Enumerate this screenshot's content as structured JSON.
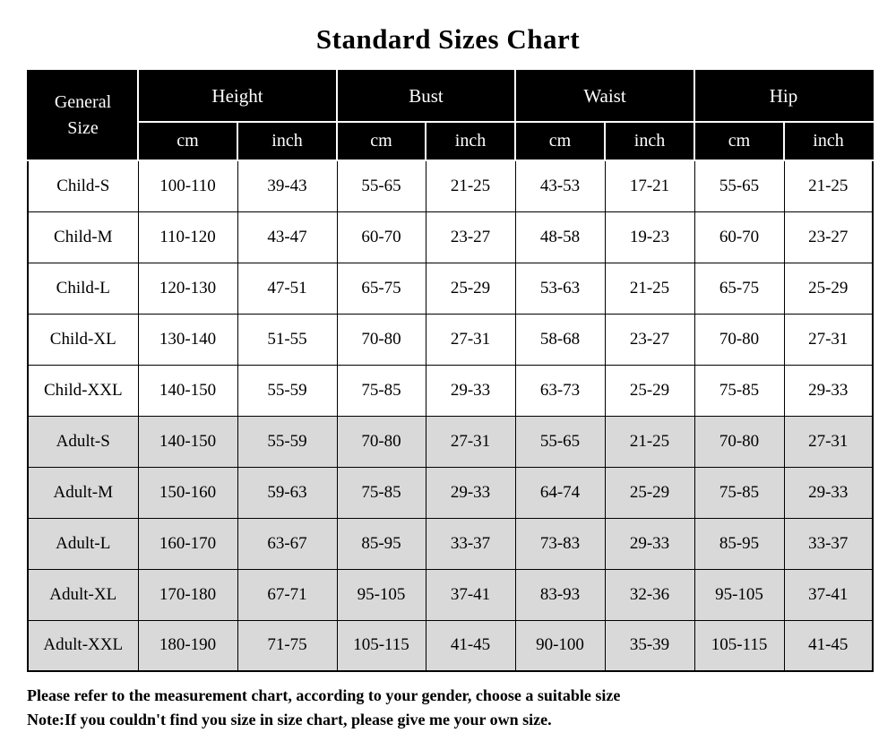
{
  "title": "Standard Sizes Chart",
  "table": {
    "corner_header": "General Size",
    "groups": [
      {
        "label": "Height"
      },
      {
        "label": "Bust"
      },
      {
        "label": "Waist"
      },
      {
        "label": "Hip"
      }
    ],
    "unit_headers": [
      "cm",
      "inch"
    ],
    "rows": [
      {
        "size": "Child-S",
        "section": "child",
        "values": [
          "100-110",
          "39-43",
          "55-65",
          "21-25",
          "43-53",
          "17-21",
          "55-65",
          "21-25"
        ]
      },
      {
        "size": "Child-M",
        "section": "child",
        "values": [
          "110-120",
          "43-47",
          "60-70",
          "23-27",
          "48-58",
          "19-23",
          "60-70",
          "23-27"
        ]
      },
      {
        "size": "Child-L",
        "section": "child",
        "values": [
          "120-130",
          "47-51",
          "65-75",
          "25-29",
          "53-63",
          "21-25",
          "65-75",
          "25-29"
        ]
      },
      {
        "size": "Child-XL",
        "section": "child",
        "values": [
          "130-140",
          "51-55",
          "70-80",
          "27-31",
          "58-68",
          "23-27",
          "70-80",
          "27-31"
        ]
      },
      {
        "size": "Child-XXL",
        "section": "child",
        "values": [
          "140-150",
          "55-59",
          "75-85",
          "29-33",
          "63-73",
          "25-29",
          "75-85",
          "29-33"
        ]
      },
      {
        "size": "Adult-S",
        "section": "adult",
        "values": [
          "140-150",
          "55-59",
          "70-80",
          "27-31",
          "55-65",
          "21-25",
          "70-80",
          "27-31"
        ]
      },
      {
        "size": "Adult-M",
        "section": "adult",
        "values": [
          "150-160",
          "59-63",
          "75-85",
          "29-33",
          "64-74",
          "25-29",
          "75-85",
          "29-33"
        ]
      },
      {
        "size": "Adult-L",
        "section": "adult",
        "values": [
          "160-170",
          "63-67",
          "85-95",
          "33-37",
          "73-83",
          "29-33",
          "85-95",
          "33-37"
        ]
      },
      {
        "size": "Adult-XL",
        "section": "adult",
        "values": [
          "170-180",
          "67-71",
          "95-105",
          "37-41",
          "83-93",
          "32-36",
          "95-105",
          "37-41"
        ]
      },
      {
        "size": "Adult-XXL",
        "section": "adult",
        "values": [
          "180-190",
          "71-75",
          "105-115",
          "41-45",
          "90-100",
          "35-39",
          "105-115",
          "41-45"
        ]
      }
    ]
  },
  "notes": [
    "Please refer to the measurement chart, according to your gender, choose a suitable size",
    "Note:If you couldn't find you size in size chart, please give me your own size."
  ],
  "colors": {
    "header_bg": "#000000",
    "header_text": "#ffffff",
    "adult_row_bg": "#d9d9d9",
    "child_row_bg": "#ffffff",
    "border": "#000000",
    "text": "#000000"
  }
}
